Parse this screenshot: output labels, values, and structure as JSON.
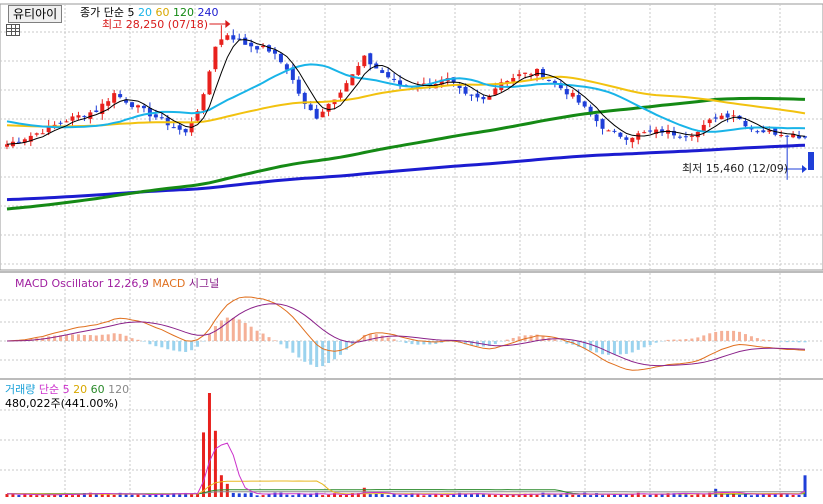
{
  "stock_name": "유티아이",
  "colors": {
    "up": "#e8211d",
    "down": "#1f3fd8",
    "ma5": "#000000",
    "ma20": "#19b4e8",
    "ma60": "#f2c20f",
    "ma120": "#158a15",
    "ma240": "#1c1cd0",
    "macd_osc_pos": "#f5b097",
    "macd_osc_neg": "#9bd3ee",
    "macd": "#e0701f",
    "signal": "#8a228a",
    "vol_ma5": "#cc33cc",
    "vol_ma20": "#e8b820",
    "vol_ma60": "#2a8a2a",
    "vol_ma120": "#888888"
  },
  "legend_price": {
    "label": "종가 단순",
    "p5": "5",
    "p20": "20",
    "p60": "60",
    "p120": "120",
    "p240": "240"
  },
  "annotations": {
    "max_label": "최고 28,250 (07/18)",
    "min_label": "최저 15,460 (12/09)"
  },
  "legend_macd": {
    "osc": "MACD Oscillator 12,26,9",
    "macd": "MACD",
    "signal": "시그널"
  },
  "legend_volume": {
    "title": "거래량",
    "label": "단순",
    "p5": "5",
    "p20": "20",
    "p60": "60",
    "p120": "120",
    "current": "480,022주(441.00%)"
  },
  "chart_data": [
    {
      "type": "candlestick",
      "name": "price",
      "price_range": [
        8000,
        30000
      ],
      "scale": "linear",
      "grid": true,
      "bars": 135,
      "max_high": {
        "value": 28250,
        "date": "07/18"
      },
      "min_low": {
        "value": 15460,
        "date": "12/09"
      },
      "series": [
        {
          "name": "5",
          "type": "line"
        },
        {
          "name": "20",
          "type": "line"
        },
        {
          "name": "60",
          "type": "line"
        },
        {
          "name": "120",
          "type": "line"
        },
        {
          "name": "240",
          "type": "line"
        }
      ],
      "generation_anchors": {
        "close": [
          [
            0,
            18400
          ],
          [
            5,
            19300
          ],
          [
            10,
            20400
          ],
          [
            15,
            21200
          ],
          [
            18,
            22600
          ],
          [
            22,
            21400
          ],
          [
            26,
            20400
          ],
          [
            30,
            19300
          ],
          [
            33,
            22300
          ],
          [
            35,
            26600
          ],
          [
            37,
            27500
          ],
          [
            40,
            26700
          ],
          [
            44,
            26200
          ],
          [
            47,
            24700
          ],
          [
            50,
            21600
          ],
          [
            52,
            20700
          ],
          [
            55,
            22300
          ],
          [
            58,
            24100
          ],
          [
            60,
            25500
          ],
          [
            63,
            24300
          ],
          [
            66,
            23300
          ],
          [
            70,
            23300
          ],
          [
            74,
            23700
          ],
          [
            77,
            22400
          ],
          [
            80,
            22100
          ],
          [
            83,
            23600
          ],
          [
            86,
            24100
          ],
          [
            89,
            24400
          ],
          [
            92,
            23400
          ],
          [
            95,
            22400
          ],
          [
            98,
            20800
          ],
          [
            101,
            19400
          ],
          [
            104,
            19000
          ],
          [
            107,
            19300
          ],
          [
            110,
            19500
          ],
          [
            113,
            19200
          ],
          [
            116,
            19400
          ],
          [
            119,
            20700
          ],
          [
            122,
            20900
          ],
          [
            125,
            19700
          ],
          [
            128,
            19400
          ],
          [
            131,
            19300
          ],
          [
            134,
            19000
          ]
        ],
        "ma20_seed": 20400,
        "ma60_seed": 20000,
        "ma120_seed": 13000,
        "ma240_seed": 13800
      }
    },
    {
      "type": "macd",
      "name": "MACD Oscillator 12,26,9",
      "params": [
        12,
        26,
        9
      ],
      "series": [
        {
          "name": "MACD",
          "type": "line"
        },
        {
          "name": "시그널",
          "type": "line"
        },
        {
          "name": "MACD Oscillator",
          "type": "bar"
        }
      ]
    },
    {
      "type": "bar",
      "name": "거래량",
      "current_volume": 480022,
      "current_ratio_pct": 441.0,
      "series": [
        {
          "name": "5",
          "type": "line"
        },
        {
          "name": "20",
          "type": "line"
        },
        {
          "name": "60",
          "type": "line"
        },
        {
          "name": "120",
          "type": "line"
        }
      ],
      "generation_anchors": {
        "base_volume": 60000,
        "spikes": [
          [
            33,
            5.0
          ],
          [
            34,
            7.0
          ],
          [
            35,
            4.0
          ],
          [
            36,
            1.5
          ],
          [
            37,
            1.2
          ],
          [
            60,
            0.6
          ],
          [
            88,
            0.5
          ],
          [
            119,
            0.6
          ],
          [
            134,
            2.2
          ]
        ]
      }
    }
  ]
}
